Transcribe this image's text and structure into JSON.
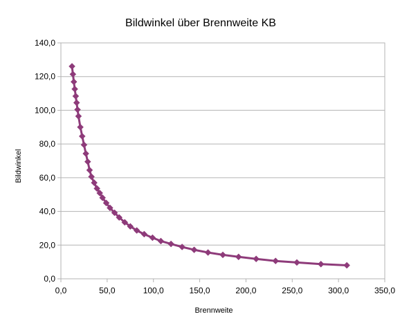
{
  "chart_data": {
    "type": "line",
    "title": "Bildwinkel über Brennweite KB",
    "xlabel": "Brennweite",
    "ylabel": "Bildwinkel",
    "xlim": [
      0,
      350
    ],
    "ylim": [
      0,
      140
    ],
    "x_ticks": [
      "0,0",
      "50,0",
      "100,0",
      "150,0",
      "200,0",
      "250,0",
      "300,0",
      "350,0"
    ],
    "y_ticks": [
      "0,0",
      "20,0",
      "40,0",
      "60,0",
      "80,0",
      "100,0",
      "120,0",
      "140,0"
    ],
    "grid": "horizontal",
    "legend": "none",
    "series": [
      {
        "color": "#8e3b7a",
        "marker": "diamond",
        "points": [
          [
            12,
            126.1
          ],
          [
            13,
            121.4
          ],
          [
            14,
            116.9
          ],
          [
            15,
            112.6
          ],
          [
            16,
            108.4
          ],
          [
            17,
            104.5
          ],
          [
            18,
            100.4
          ],
          [
            19,
            96.5
          ],
          [
            21,
            90.0
          ],
          [
            23,
            84.6
          ],
          [
            25,
            79.5
          ],
          [
            27,
            74.3
          ],
          [
            29,
            69.5
          ],
          [
            31,
            64.5
          ],
          [
            33,
            60.6
          ],
          [
            36,
            57.0
          ],
          [
            39,
            53.6
          ],
          [
            42,
            50.9
          ],
          [
            45,
            48.1
          ],
          [
            49,
            45.0
          ],
          [
            53,
            42.1
          ],
          [
            58,
            39.2
          ],
          [
            63,
            36.4
          ],
          [
            69,
            33.5
          ],
          [
            75,
            31.1
          ],
          [
            82,
            28.7
          ],
          [
            90,
            26.5
          ],
          [
            99,
            24.4
          ],
          [
            108,
            22.4
          ],
          [
            119,
            20.7
          ],
          [
            131,
            18.9
          ],
          [
            144,
            17.2
          ],
          [
            159,
            15.6
          ],
          [
            175,
            14.2
          ],
          [
            192,
            13.0
          ],
          [
            211,
            11.8
          ],
          [
            232,
            10.6
          ],
          [
            255,
            9.7
          ],
          [
            281,
            8.7
          ],
          [
            309,
            8.0
          ]
        ]
      }
    ]
  }
}
